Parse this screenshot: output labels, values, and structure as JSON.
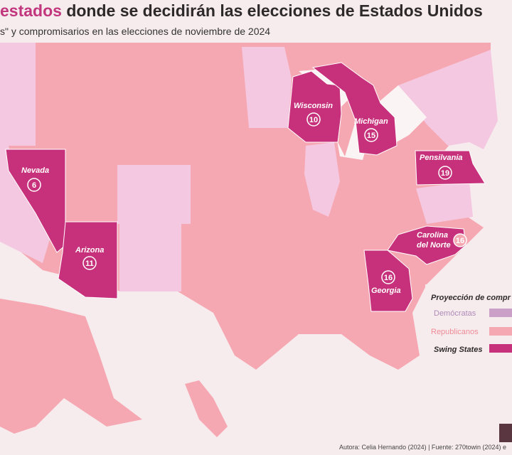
{
  "header": {
    "title_accent": "estados",
    "title_rest": " donde se decidirán las elecciones de Estados Unidos",
    "subtitle": "s\" y compromisarios en las elecciones de noviembre de 2024"
  },
  "colors": {
    "democrat": "#f4c8e0",
    "republican": "#f6a8b2",
    "swing": "#c7317b",
    "background": "#f6ecee"
  },
  "swing_states": [
    {
      "name": "Nevada",
      "electoral_votes": "6"
    },
    {
      "name": "Arizona",
      "electoral_votes": "11"
    },
    {
      "name": "Wisconsin",
      "electoral_votes": "10"
    },
    {
      "name": "Michigan",
      "electoral_votes": "15"
    },
    {
      "name": "Pensilvania",
      "electoral_votes": "19"
    },
    {
      "name_line1": "Carolina",
      "name_line2": "del Norte",
      "electoral_votes": "16"
    },
    {
      "name": "Georgia",
      "electoral_votes": "16"
    }
  ],
  "legend": {
    "title": "Proyección de compr",
    "items": [
      {
        "label": "Demócratas",
        "color": "#caa0c8"
      },
      {
        "label": "Republicanos",
        "color": "#f6a8b2"
      },
      {
        "label": "Swing States",
        "color": "#c7317b"
      }
    ]
  },
  "footer": {
    "credit": "Autora: Celia Hernando (2024) | Fuente: 270towin (2024) e"
  }
}
